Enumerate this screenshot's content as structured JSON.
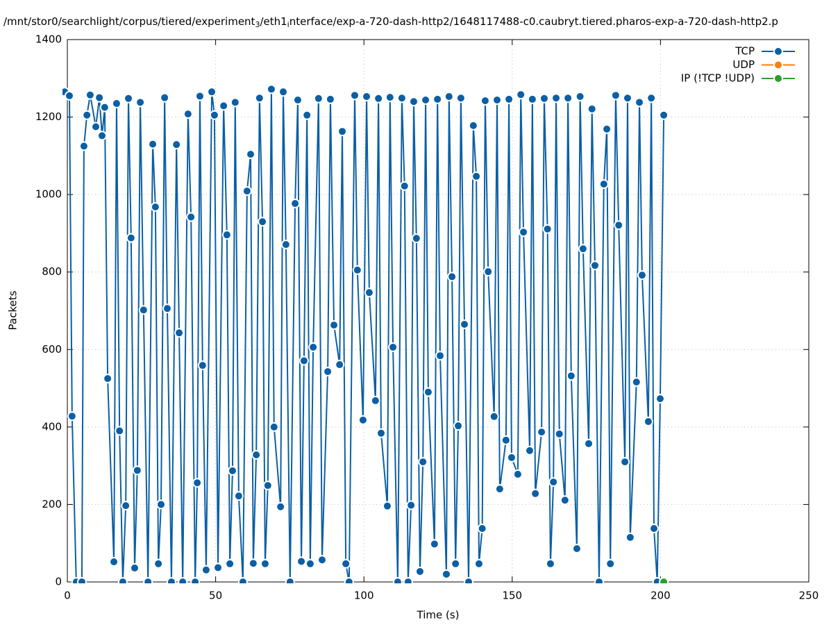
{
  "chart_data": {
    "type": "line",
    "title_parts": [
      "/mnt/stor0/searchlight/corpus/tiered/experiment",
      "3",
      "/eth1",
      "i",
      "nterface/exp-a-720-dash-http2/1648117488-c0.caubryt.tiered.pharos-exp-a-720-dash-http2.p"
    ],
    "x_label": "Time (s)",
    "y_label": "Packets",
    "xlim": [
      0,
      250
    ],
    "xticks": [
      0,
      50,
      100,
      150,
      200,
      250
    ],
    "ylim": [
      0,
      1400
    ],
    "yticks": [
      0,
      200,
      400,
      600,
      800,
      1000,
      1200,
      1400
    ],
    "grid": true,
    "legend": "top-right",
    "series": [
      {
        "name": "TCP",
        "color": "#0b5fa5",
        "x": [
          -0.9,
          0.7,
          1.6,
          3.0,
          4.9,
          5.6,
          6.6,
          7.7,
          9.6,
          10.8,
          11.7,
          12.6,
          13.6,
          15.7,
          16.6,
          17.6,
          18.7,
          19.7,
          20.6,
          21.5,
          22.7,
          23.6,
          24.6,
          25.7,
          27.2,
          28.8,
          29.7,
          30.7,
          31.6,
          32.8,
          33.7,
          35.1,
          36.8,
          37.7,
          38.9,
          40.7,
          41.7,
          43.1,
          43.8,
          44.7,
          45.6,
          46.8,
          48.7,
          49.6,
          50.8,
          52.7,
          53.8,
          54.8,
          55.7,
          56.6,
          57.8,
          59.2,
          60.6,
          61.8,
          62.7,
          63.7,
          64.8,
          65.8,
          66.7,
          67.6,
          68.8,
          69.7,
          71.9,
          72.8,
          73.7,
          75.1,
          76.8,
          77.7,
          78.9,
          79.8,
          80.8,
          81.9,
          82.9,
          84.7,
          85.9,
          87.8,
          88.7,
          89.9,
          91.8,
          92.7,
          93.9,
          95.0,
          96.9,
          97.8,
          99.7,
          100.9,
          101.8,
          103.9,
          104.9,
          105.8,
          107.9,
          108.8,
          109.8,
          111.4,
          112.8,
          113.7,
          114.9,
          115.9,
          116.8,
          117.7,
          118.9,
          119.9,
          120.8,
          121.7,
          123.8,
          124.8,
          125.7,
          127.8,
          128.7,
          129.7,
          130.9,
          131.8,
          132.7,
          133.9,
          135.3,
          136.9,
          137.9,
          138.8,
          139.9,
          140.9,
          141.9,
          143.9,
          144.9,
          145.8,
          147.9,
          148.9,
          149.8,
          151.9,
          152.9,
          153.8,
          155.9,
          156.8,
          157.8,
          159.9,
          160.8,
          161.9,
          162.9,
          163.9,
          164.8,
          165.9,
          167.8,
          168.8,
          169.9,
          171.8,
          172.9,
          173.9,
          175.8,
          176.9,
          177.9,
          179.3,
          180.9,
          181.9,
          183.1,
          184.9,
          185.9,
          188.0,
          188.9,
          189.8,
          191.9,
          192.9,
          193.8,
          195.9,
          196.9,
          197.8,
          198.9,
          199.9,
          201.1
        ],
        "values": [
          1265,
          1255,
          428,
          0,
          0,
          1125,
          1205,
          1257,
          1175,
          1250,
          1152,
          1225,
          525,
          52,
          1235,
          390,
          0,
          197,
          1248,
          888,
          36,
          288,
          1238,
          702,
          0,
          1130,
          968,
          47,
          200,
          1250,
          706,
          0,
          1129,
          643,
          0,
          1208,
          942,
          0,
          256,
          1254,
          559,
          31,
          1265,
          1205,
          37,
          1229,
          896,
          47,
          287,
          1238,
          222,
          0,
          1009,
          1104,
          48,
          328,
          1249,
          930,
          47,
          249,
          1272,
          400,
          194,
          1265,
          871,
          0,
          977,
          1244,
          53,
          571,
          1205,
          47,
          606,
          1248,
          57,
          543,
          1246,
          663,
          561,
          1163,
          47,
          0,
          1256,
          805,
          418,
          1253,
          747,
          468,
          1248,
          384,
          196,
          1251,
          606,
          0,
          1249,
          1022,
          0,
          198,
          1240,
          887,
          27,
          310,
          1244,
          490,
          98,
          1246,
          584,
          20,
          1253,
          788,
          47,
          403,
          1249,
          665,
          0,
          1178,
          1047,
          47,
          138,
          1242,
          801,
          427,
          1244,
          240,
          366,
          1246,
          321,
          278,
          1258,
          903,
          339,
          1246,
          228,
          387,
          1248,
          911,
          47,
          258,
          1249,
          382,
          211,
          1249,
          532,
          86,
          1253,
          860,
          357,
          1221,
          817,
          0,
          1027,
          1169,
          47,
          1256,
          921,
          310,
          1249,
          115,
          516,
          1238,
          792,
          414,
          1249,
          138,
          0,
          473,
          1205
        ]
      },
      {
        "name": "UDP",
        "color": "#ff7f0e",
        "x": [
          201.1
        ],
        "values": [
          0
        ]
      },
      {
        "name": "IP (!TCP  !UDP)",
        "color": "#2ca02c",
        "x": [
          201.1
        ],
        "values": [
          0
        ]
      }
    ]
  }
}
